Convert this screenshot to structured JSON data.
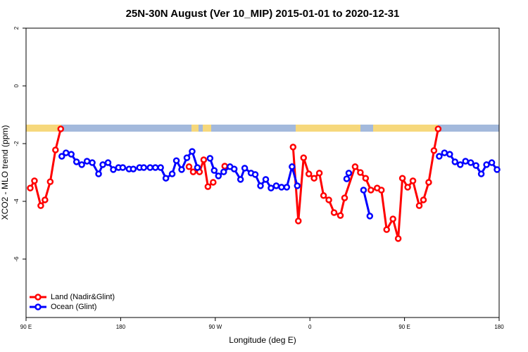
{
  "chart_data": {
    "type": "line",
    "title": "25N-30N August (Ver 10_MIP)   2015-01-01 to 2020-12-31",
    "x_label": "Longitude (deg E)",
    "y_label": "XCO2 - MLO trend (ppm)",
    "xlim": [
      90,
      540
    ],
    "xticks": [
      {
        "value": 90,
        "label": "90 E"
      },
      {
        "value": 180,
        "label": "180"
      },
      {
        "value": 270,
        "label": "90 W"
      },
      {
        "value": 360,
        "label": "0"
      },
      {
        "value": 450,
        "label": "90 E"
      },
      {
        "value": 540,
        "label": "180"
      }
    ],
    "ylim": [
      -8,
      2
    ],
    "yticks": [
      2,
      0,
      -2,
      -4,
      -6
    ],
    "legend": "bottom-left",
    "series": [
      {
        "name": "Land (Nadir&Glint)",
        "color": "#ff0000",
        "x": [
          94,
          98,
          104,
          108,
          113,
          118,
          123,
          125,
          245,
          249,
          255,
          259,
          263,
          268,
          273,
          279,
          300,
          344,
          349,
          354,
          359,
          364,
          369,
          373,
          378,
          383,
          389,
          393,
          403,
          408,
          413,
          418,
          424,
          428,
          433,
          439,
          444,
          448,
          453,
          458,
          464,
          468,
          473,
          478,
          482
        ],
        "values": [
          -3.54,
          -3.29,
          -4.15,
          -3.95,
          -3.32,
          -2.22,
          -1.49,
          null,
          -2.8,
          -2.98,
          -2.98,
          -2.56,
          -3.49,
          -3.34,
          null,
          -2.78,
          null,
          -2.12,
          -4.68,
          -2.49,
          -3.05,
          -3.2,
          -3.02,
          -3.8,
          -3.95,
          -4.39,
          -4.49,
          -3.88,
          -2.8,
          -3.0,
          -3.2,
          -3.61,
          -3.54,
          -3.61,
          -4.98,
          -4.61,
          -5.29,
          -3.2,
          -3.51,
          -3.29,
          -4.15,
          -3.95,
          -3.34,
          -2.24,
          -1.49
        ]
      },
      {
        "name": "Ocean (Glint)",
        "color": "#0000ff",
        "x": [
          124,
          128,
          133,
          138,
          143,
          148,
          153,
          159,
          163,
          168,
          173,
          178,
          182,
          188,
          192,
          198,
          202,
          208,
          213,
          218,
          223,
          229,
          233,
          238,
          243,
          248,
          253,
          258,
          265,
          269,
          273,
          278,
          284,
          288,
          294,
          298,
          304,
          308,
          313,
          318,
          323,
          328,
          333,
          338,
          343,
          348,
          367,
          395,
          397,
          403,
          411,
          417,
          447,
          483,
          488,
          493,
          498,
          503,
          508,
          513,
          518,
          523,
          528,
          533,
          538
        ],
        "values": [
          -2.44,
          -2.32,
          -2.37,
          -2.63,
          -2.73,
          -2.61,
          -2.66,
          -3.05,
          -2.73,
          -2.66,
          -2.9,
          -2.83,
          -2.83,
          -2.88,
          -2.88,
          -2.83,
          -2.83,
          -2.83,
          -2.83,
          -2.83,
          -3.2,
          -3.05,
          -2.59,
          -2.9,
          -2.49,
          -2.27,
          -2.83,
          null,
          -2.51,
          -2.93,
          -3.12,
          -2.98,
          -2.8,
          -2.88,
          -3.24,
          -2.85,
          -3.02,
          -3.07,
          -3.46,
          -3.24,
          -3.54,
          -3.46,
          -3.51,
          -3.51,
          -2.8,
          -3.46,
          null,
          -3.22,
          -3.02,
          null,
          -3.61,
          -4.51,
          null,
          -2.44,
          -2.32,
          -2.37,
          -2.63,
          -2.73,
          -2.61,
          -2.66,
          -2.76,
          -3.05,
          -2.73,
          -2.66,
          -2.9
        ]
      }
    ]
  }
}
